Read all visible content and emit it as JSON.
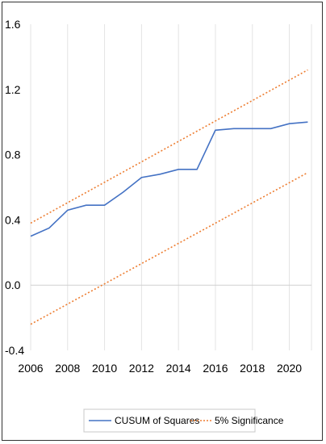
{
  "chart_data": {
    "type": "line",
    "title": "",
    "xlabel": "",
    "ylabel": "",
    "xlim": [
      2006,
      2021.2
    ],
    "ylim": [
      -0.4,
      1.6
    ],
    "x_ticks": [
      2006,
      2008,
      2010,
      2012,
      2014,
      2016,
      2018,
      2020
    ],
    "y_ticks": [
      1.6,
      1.2,
      0.8,
      0.4,
      0.0,
      -0.4
    ],
    "y_tick_labels": [
      "1.6",
      "1.2",
      "0.8",
      "0.4",
      "0.0",
      "-0.4"
    ],
    "grid": "vertical",
    "legend_position": "bottom",
    "series": [
      {
        "name": "CUSUM of Squares",
        "color": "#4472c4",
        "style": "solid",
        "x": [
          2006,
          2007,
          2008,
          2009,
          2010,
          2011,
          2012,
          2013,
          2014,
          2015,
          2016,
          2017,
          2018,
          2019,
          2020,
          2021
        ],
        "y": [
          0.3,
          0.35,
          0.46,
          0.49,
          0.49,
          0.57,
          0.66,
          0.68,
          0.71,
          0.71,
          0.95,
          0.96,
          0.96,
          0.96,
          0.99,
          1.0
        ]
      },
      {
        "name": "5% Significance",
        "color": "#ed7d31",
        "style": "dotted",
        "x": [
          2006,
          2021
        ],
        "y": [
          0.38,
          1.32
        ]
      },
      {
        "name": "5% Significance lower",
        "color": "#ed7d31",
        "style": "dotted",
        "legend": false,
        "x": [
          2006,
          2021
        ],
        "y": [
          -0.24,
          0.69
        ]
      }
    ]
  }
}
